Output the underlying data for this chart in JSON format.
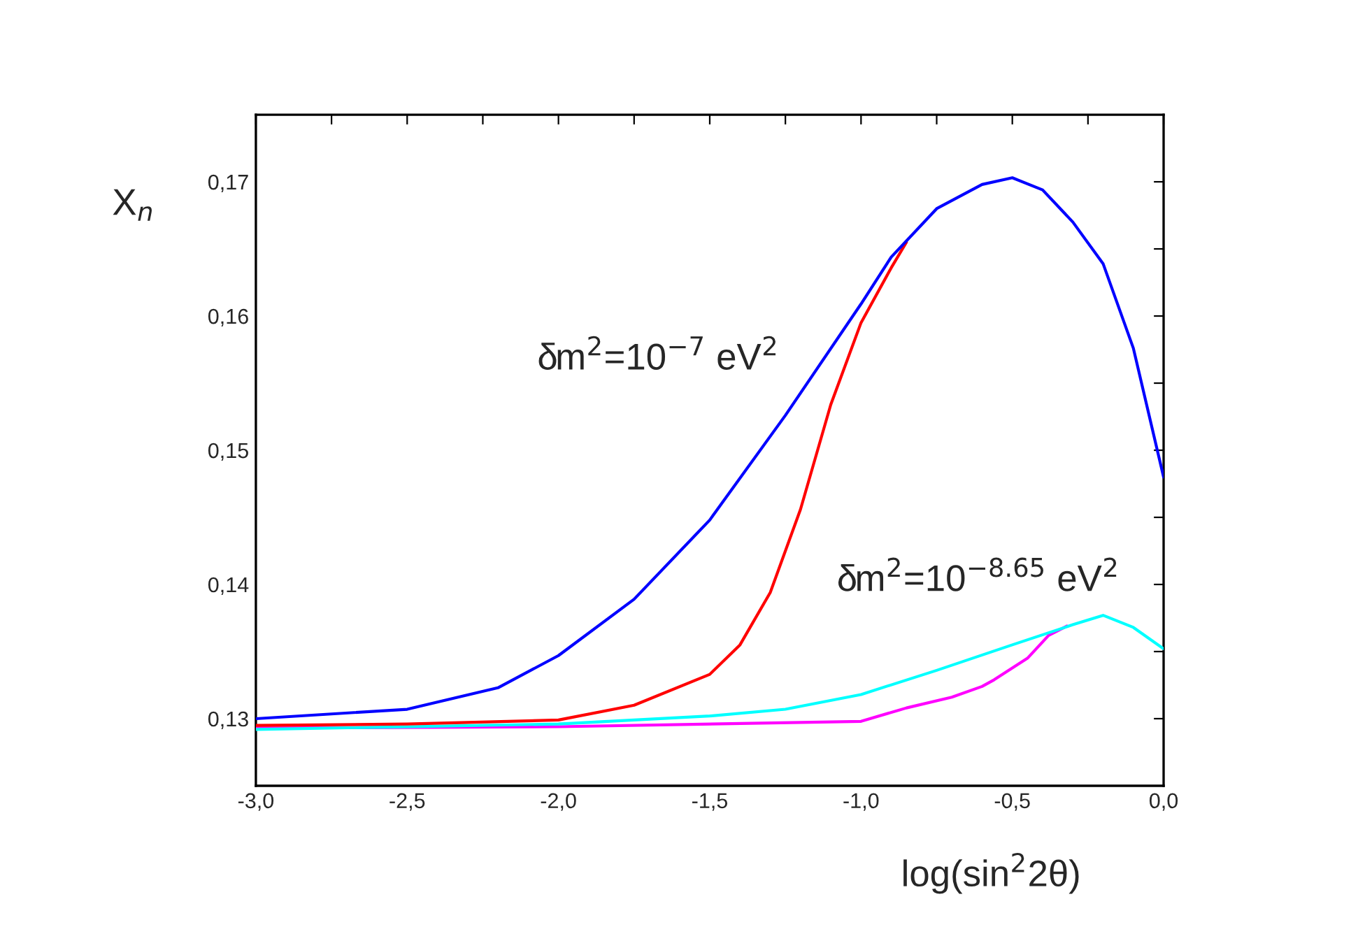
{
  "chart_data": {
    "type": "line",
    "xlabel": "log(sin$^{2}$2θ)",
    "ylabel": "X$_{n}$",
    "xlim": [
      -3.0,
      0.0
    ],
    "ylim": [
      0.125,
      0.175
    ],
    "xticks": [
      {
        "value": -3.0,
        "label": "-3,0"
      },
      {
        "value": -2.75,
        "label": null
      },
      {
        "value": -2.5,
        "label": "-2,5"
      },
      {
        "value": -2.25,
        "label": null
      },
      {
        "value": -2.0,
        "label": "-2,0"
      },
      {
        "value": -1.75,
        "label": null
      },
      {
        "value": -1.5,
        "label": "-1,5"
      },
      {
        "value": -1.25,
        "label": null
      },
      {
        "value": -1.0,
        "label": "-1,0"
      },
      {
        "value": -0.75,
        "label": null
      },
      {
        "value": -0.5,
        "label": "-0,5"
      },
      {
        "value": -0.25,
        "label": null
      },
      {
        "value": 0.0,
        "label": "0,0"
      }
    ],
    "yticks": [
      {
        "value": 0.13,
        "label": "0,13"
      },
      {
        "value": 0.135,
        "label": null
      },
      {
        "value": 0.14,
        "label": "0,14"
      },
      {
        "value": 0.145,
        "label": null
      },
      {
        "value": 0.15,
        "label": "0,15"
      },
      {
        "value": 0.155,
        "label": null
      },
      {
        "value": 0.16,
        "label": "0,16"
      },
      {
        "value": 0.165,
        "label": null
      },
      {
        "value": 0.17,
        "label": "0,17"
      }
    ],
    "annotations": [
      "δm$^{2}$=10$^{−7}$ eV$^{2}$",
      "δm$^{2}$=10$^{−8.65}$ eV$^{2}$"
    ],
    "series": [
      {
        "color": "#0000ff",
        "x": [
          -3.0,
          -2.5,
          -2.2,
          -2.0,
          -1.75,
          -1.5,
          -1.25,
          -1.0,
          -0.9,
          -0.75,
          -0.6,
          -0.5,
          -0.4,
          -0.3,
          -0.2,
          -0.1,
          0.0
        ],
        "values": [
          0.13,
          0.1307,
          0.1323,
          0.1347,
          0.1389,
          0.1448,
          0.1526,
          0.1609,
          0.1644,
          0.168,
          0.1698,
          0.1703,
          0.1694,
          0.167,
          0.1639,
          0.1576,
          0.148
        ]
      },
      {
        "color": "#ff0000",
        "x": [
          -3.0,
          -2.5,
          -2.0,
          -1.75,
          -1.5,
          -1.4,
          -1.3,
          -1.2,
          -1.1,
          -1.0,
          -0.9,
          -0.85
        ],
        "values": [
          0.1295,
          0.1296,
          0.1299,
          0.131,
          0.1333,
          0.1355,
          0.1394,
          0.1456,
          0.1534,
          0.1595,
          0.1636,
          0.1655
        ]
      },
      {
        "color": "#00ffff",
        "x": [
          -3.0,
          -2.0,
          -1.5,
          -1.25,
          -1.0,
          -0.75,
          -0.5,
          -0.3,
          -0.2,
          -0.1,
          0.0
        ],
        "values": [
          0.1292,
          0.1296,
          0.1302,
          0.1307,
          0.1318,
          0.1336,
          0.1355,
          0.137,
          0.1377,
          0.1368,
          0.1352
        ]
      },
      {
        "color": "#ff00ff",
        "x": [
          -3.0,
          -2.0,
          -1.0,
          -0.85,
          -0.7,
          -0.6,
          -0.56,
          -0.45,
          -0.38,
          -0.32
        ],
        "values": [
          0.1293,
          0.1294,
          0.1298,
          0.1308,
          0.1316,
          0.1324,
          0.1329,
          0.1345,
          0.1362,
          0.1369
        ]
      }
    ]
  }
}
